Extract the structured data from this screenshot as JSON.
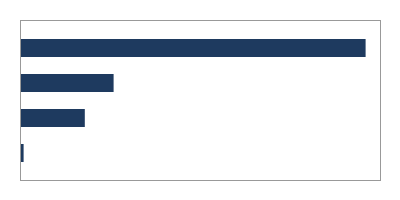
{
  "chart_data": {
    "type": "bar",
    "orientation": "horizontal",
    "categories": [
      null,
      null,
      null,
      null
    ],
    "values": [
      96,
      26,
      18,
      1
    ],
    "color": "#1e3a5f",
    "xlim": [
      0,
      100
    ],
    "tick_labels": false
  }
}
